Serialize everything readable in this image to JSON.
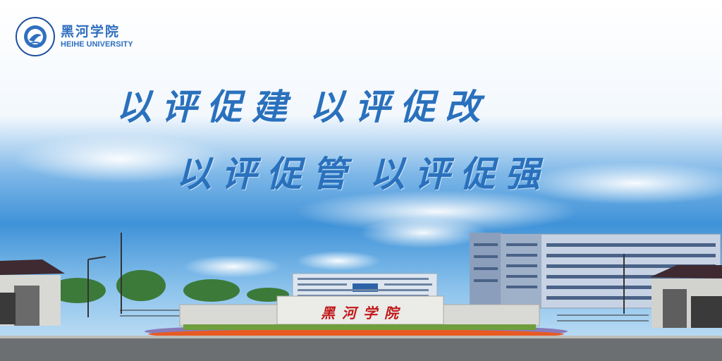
{
  "logo": {
    "cn_name": "黑河学院",
    "en_name": "HEIHE UNIVERSITY",
    "seal_text_top": "黑河学院",
    "seal_text_bottom": "HEIHE UNIVERSITY"
  },
  "slogan": {
    "line1": [
      "以评促建",
      "以评促改"
    ],
    "line2": [
      "以评促管",
      "以评促强"
    ]
  },
  "gate_sign": "黑河学院",
  "colors": {
    "slogan_blue": "#2a71bd",
    "logo_blue": "#2f6fbf",
    "gate_text_red": "#c01818",
    "sky_top": "#f8fbff",
    "sky_blue": "#3f92d8"
  }
}
